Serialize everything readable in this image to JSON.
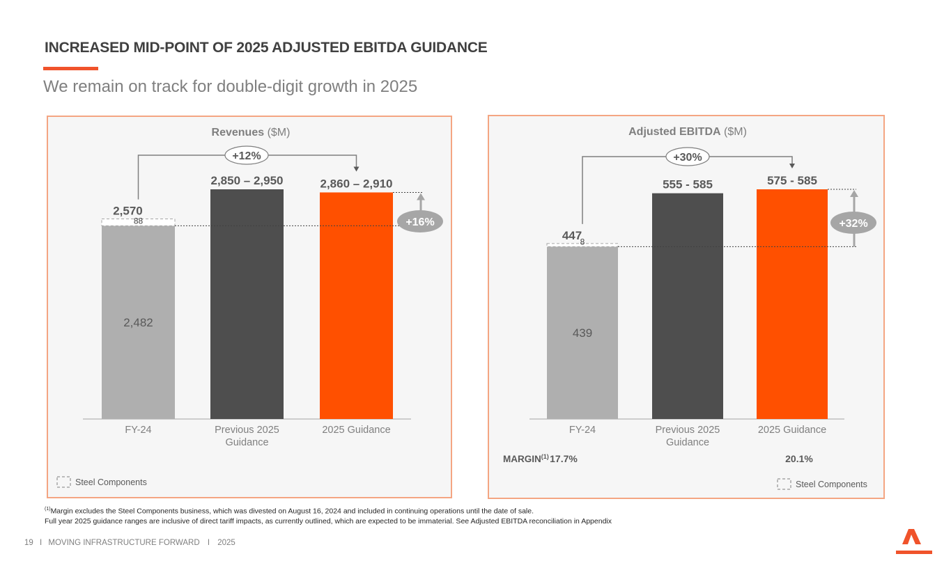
{
  "header": {
    "title": "INCREASED MID-POINT OF 2025 ADJUSTED EBITDA GUIDANCE",
    "subtitle": "We remain on track for double-digit growth in 2025"
  },
  "colors": {
    "accent": "#f0532b",
    "bar_gray": "#afafaf",
    "bar_dark": "#4e4e4e",
    "bar_orange": "#ff5000",
    "badge": "#a6a6a6"
  },
  "legend_label": "Steel Components",
  "chart_data": [
    {
      "type": "bar",
      "title_bold": "Revenues",
      "title_unit": " ($M)",
      "categories": [
        "FY-24",
        "Previous 2025 Guidance",
        "2025 Guidance"
      ],
      "category_lines": [
        [
          "FY-24"
        ],
        [
          "Previous 2025",
          "Guidance"
        ],
        [
          "2025 Guidance"
        ]
      ],
      "ylim": [
        0,
        2950
      ],
      "bars": [
        {
          "base": 2482,
          "steel_components": 88,
          "total": 2570,
          "label": "2,570",
          "inner_label": "2,482",
          "steel_label": "88"
        },
        {
          "value": 2950,
          "label": "2,850 – 2,950"
        },
        {
          "value": 2910,
          "label": "2,860 – 2,910"
        }
      ],
      "growth_previous": "+12%",
      "growth_guidance": "+16%",
      "legend_position": "bottom-left"
    },
    {
      "type": "bar",
      "title_bold": "Adjusted EBITDA",
      "title_unit": " ($M)",
      "categories": [
        "FY-24",
        "Previous 2025 Guidance",
        "2025 Guidance"
      ],
      "category_lines": [
        [
          "FY-24"
        ],
        [
          "Previous 2025",
          "Guidance"
        ],
        [
          "2025 Guidance"
        ]
      ],
      "ylim": [
        0,
        585
      ],
      "bars": [
        {
          "base": 439,
          "steel_components": 8,
          "total": 447,
          "label": "447",
          "inner_label": "439",
          "steel_label": "8"
        },
        {
          "value": 575,
          "label": "555 - 585"
        },
        {
          "value": 585,
          "label": "575 - 585"
        }
      ],
      "growth_previous": "+30%",
      "growth_guidance": "+32%",
      "margin_label": "MARGIN",
      "margin_sup": "(1)",
      "margins": [
        "17.7%",
        "",
        "20.1%"
      ],
      "legend_position": "bottom-right"
    }
  ],
  "footnotes": {
    "sup": "(1)",
    "line1": "Margin excludes the Steel Components business, which was divested on August 16, 2024 and included in continuing operations until the date of sale.",
    "line2": "Full year 2025 guidance ranges are inclusive of direct tariff impacts, as currently outlined, which are expected to be immaterial.  See Adjusted EBITDA reconciliation in Appendix"
  },
  "footer": {
    "page": "19",
    "sep": "I",
    "text": "MOVING INFRASTRUCTURE FORWARD",
    "year": "2025"
  }
}
